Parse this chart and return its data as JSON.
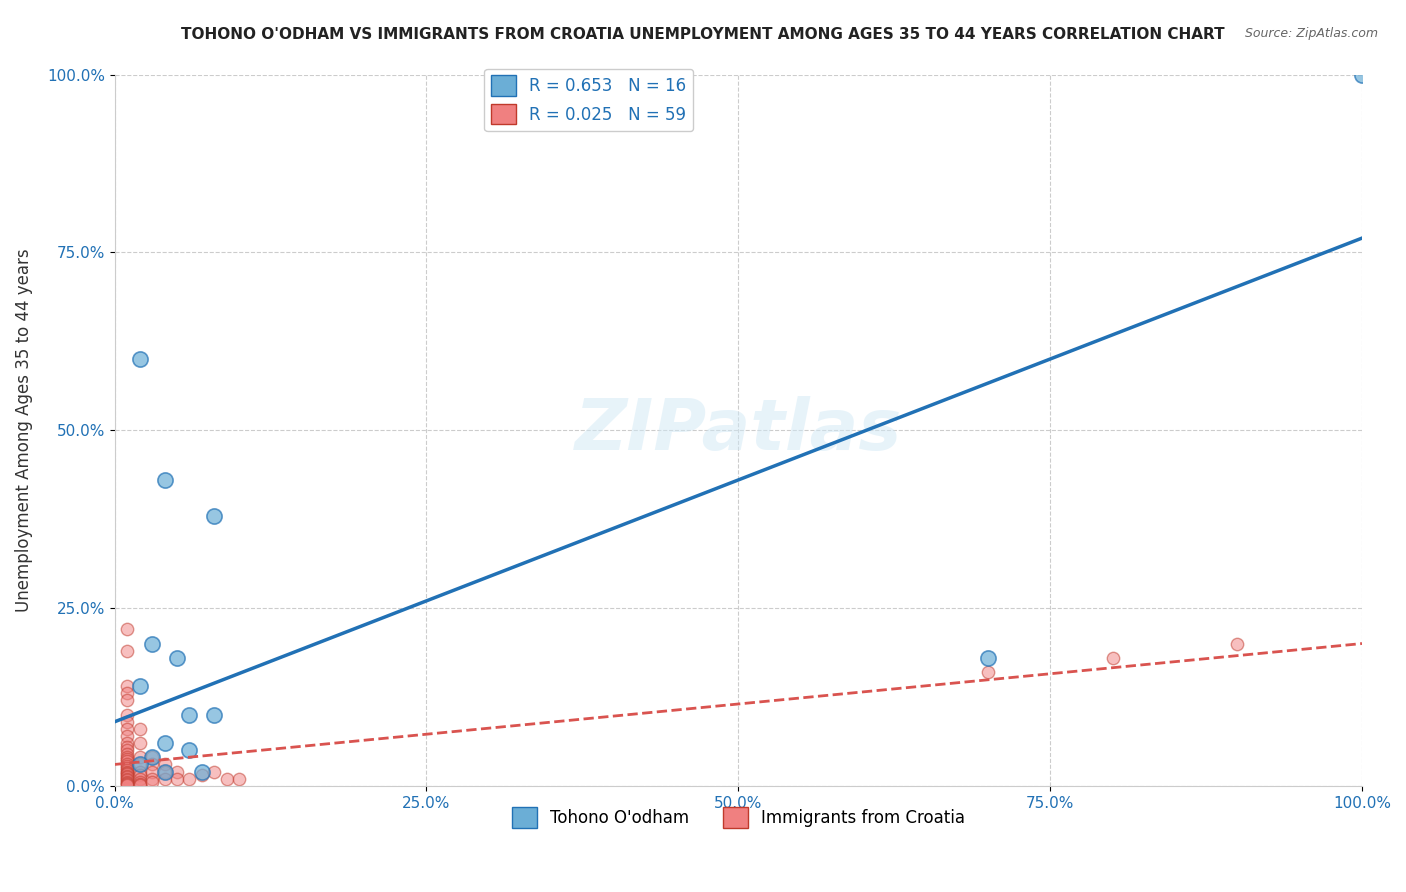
{
  "title": "TOHONO O'ODHAM VS IMMIGRANTS FROM CROATIA UNEMPLOYMENT AMONG AGES 35 TO 44 YEARS CORRELATION CHART",
  "source": "Source: ZipAtlas.com",
  "xlabel": "",
  "ylabel": "Unemployment Among Ages 35 to 44 years",
  "xlim": [
    0,
    1.0
  ],
  "ylim": [
    0,
    1.0
  ],
  "xticks": [
    0.0,
    0.25,
    0.5,
    0.75,
    1.0
  ],
  "xtick_labels": [
    "0.0%",
    "25.0%",
    "50.0%",
    "75.0%",
    "100.0%"
  ],
  "yticks": [
    0.0,
    0.25,
    0.5,
    0.75,
    1.0
  ],
  "ytick_labels": [
    "0.0%",
    "25.0%",
    "50.0%",
    "75.0%",
    "100.0%"
  ],
  "watermark": "ZIPatlas",
  "legend_R_blue": "R = 0.653",
  "legend_N_blue": "N = 16",
  "legend_R_pink": "R = 0.025",
  "legend_N_pink": "N = 59",
  "legend_label_blue": "Tohono O'odham",
  "legend_label_pink": "Immigrants from Croatia",
  "blue_color": "#6baed6",
  "pink_color": "#f08080",
  "trend_blue_color": "#2171b5",
  "trend_pink_color": "#d9534f",
  "blue_scatter": [
    [
      0.02,
      0.6
    ],
    [
      0.04,
      0.43
    ],
    [
      0.08,
      0.38
    ],
    [
      0.03,
      0.2
    ],
    [
      0.05,
      0.18
    ],
    [
      0.02,
      0.14
    ],
    [
      0.06,
      0.1
    ],
    [
      0.08,
      0.1
    ],
    [
      0.04,
      0.06
    ],
    [
      0.06,
      0.05
    ],
    [
      0.03,
      0.04
    ],
    [
      0.02,
      0.03
    ],
    [
      0.04,
      0.02
    ],
    [
      0.07,
      0.02
    ],
    [
      0.7,
      0.18
    ],
    [
      1.0,
      1.0
    ]
  ],
  "pink_scatter": [
    [
      0.01,
      0.22
    ],
    [
      0.01,
      0.19
    ],
    [
      0.01,
      0.14
    ],
    [
      0.01,
      0.13
    ],
    [
      0.01,
      0.12
    ],
    [
      0.01,
      0.1
    ],
    [
      0.01,
      0.09
    ],
    [
      0.01,
      0.08
    ],
    [
      0.01,
      0.07
    ],
    [
      0.01,
      0.06
    ],
    [
      0.01,
      0.055
    ],
    [
      0.01,
      0.05
    ],
    [
      0.01,
      0.045
    ],
    [
      0.01,
      0.04
    ],
    [
      0.01,
      0.038
    ],
    [
      0.01,
      0.035
    ],
    [
      0.01,
      0.03
    ],
    [
      0.01,
      0.028
    ],
    [
      0.01,
      0.025
    ],
    [
      0.01,
      0.022
    ],
    [
      0.01,
      0.02
    ],
    [
      0.01,
      0.018
    ],
    [
      0.01,
      0.016
    ],
    [
      0.01,
      0.014
    ],
    [
      0.01,
      0.012
    ],
    [
      0.01,
      0.01
    ],
    [
      0.01,
      0.008
    ],
    [
      0.01,
      0.006
    ],
    [
      0.01,
      0.004
    ],
    [
      0.01,
      0.002
    ],
    [
      0.01,
      0.001
    ],
    [
      0.02,
      0.08
    ],
    [
      0.02,
      0.06
    ],
    [
      0.02,
      0.04
    ],
    [
      0.02,
      0.03
    ],
    [
      0.02,
      0.02
    ],
    [
      0.02,
      0.015
    ],
    [
      0.02,
      0.01
    ],
    [
      0.02,
      0.005
    ],
    [
      0.02,
      0.003
    ],
    [
      0.02,
      0.001
    ],
    [
      0.03,
      0.04
    ],
    [
      0.03,
      0.03
    ],
    [
      0.03,
      0.02
    ],
    [
      0.03,
      0.01
    ],
    [
      0.03,
      0.005
    ],
    [
      0.04,
      0.03
    ],
    [
      0.04,
      0.02
    ],
    [
      0.04,
      0.01
    ],
    [
      0.05,
      0.02
    ],
    [
      0.05,
      0.01
    ],
    [
      0.06,
      0.01
    ],
    [
      0.07,
      0.015
    ],
    [
      0.08,
      0.02
    ],
    [
      0.09,
      0.01
    ],
    [
      0.1,
      0.01
    ],
    [
      0.7,
      0.16
    ],
    [
      0.8,
      0.18
    ],
    [
      0.9,
      0.2
    ]
  ],
  "blue_trend_x": [
    0.0,
    1.0
  ],
  "blue_trend_y": [
    0.09,
    0.77
  ],
  "pink_trend_x": [
    0.0,
    1.0
  ],
  "pink_trend_y": [
    0.03,
    0.2
  ],
  "bubble_size_blue": 120,
  "bubble_size_pink": 80
}
